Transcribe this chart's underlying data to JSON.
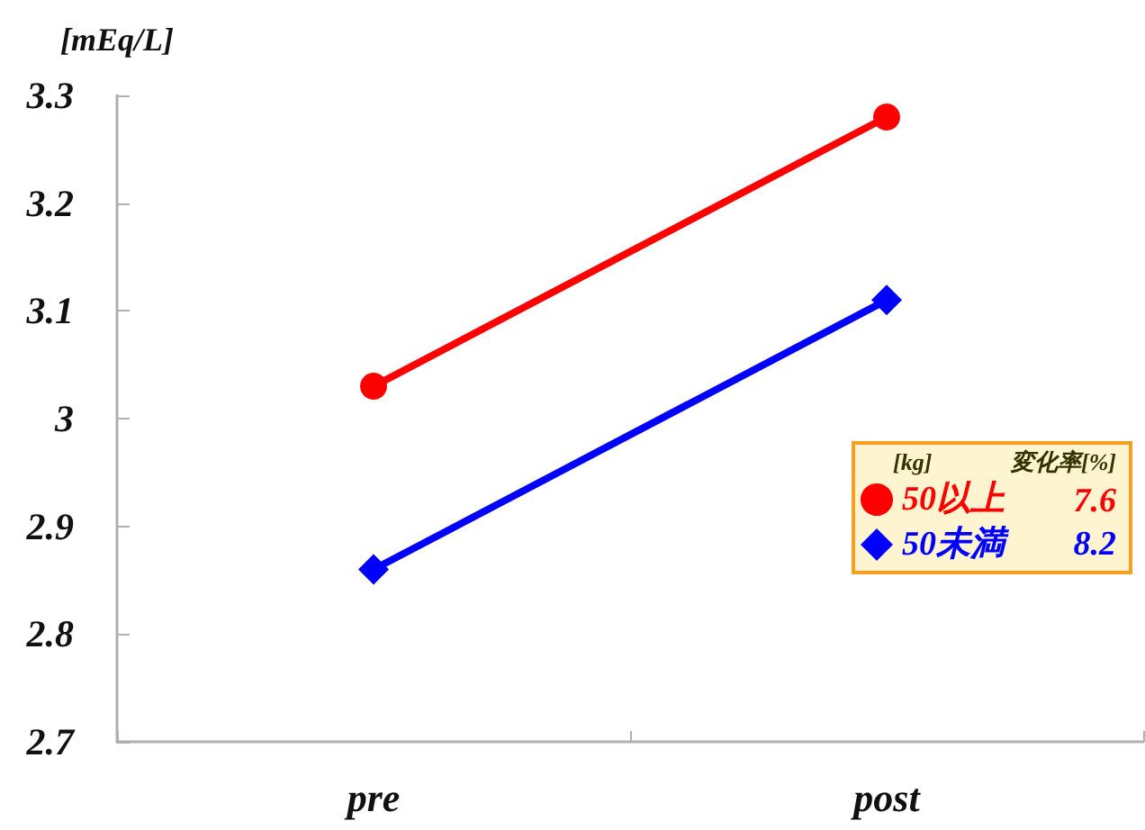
{
  "chart_data": {
    "type": "line",
    "ylabel": "[mEq/L]",
    "categories": [
      "pre",
      "post"
    ],
    "series": [
      {
        "name": "50以上",
        "color": "#ff0000",
        "marker": "circle",
        "values": [
          3.03,
          3.28
        ]
      },
      {
        "name": "50未満",
        "color": "#0000ff",
        "marker": "diamond",
        "values": [
          2.86,
          3.11
        ]
      }
    ],
    "ylim": [
      2.7,
      3.3
    ],
    "yticks": [
      2.7,
      2.8,
      2.9,
      3,
      3.1,
      3.2,
      3.3
    ],
    "legend": "right",
    "legend_title": "[kg]",
    "annotations": [
      "変化率[%]",
      "7.6",
      "8.2"
    ]
  }
}
